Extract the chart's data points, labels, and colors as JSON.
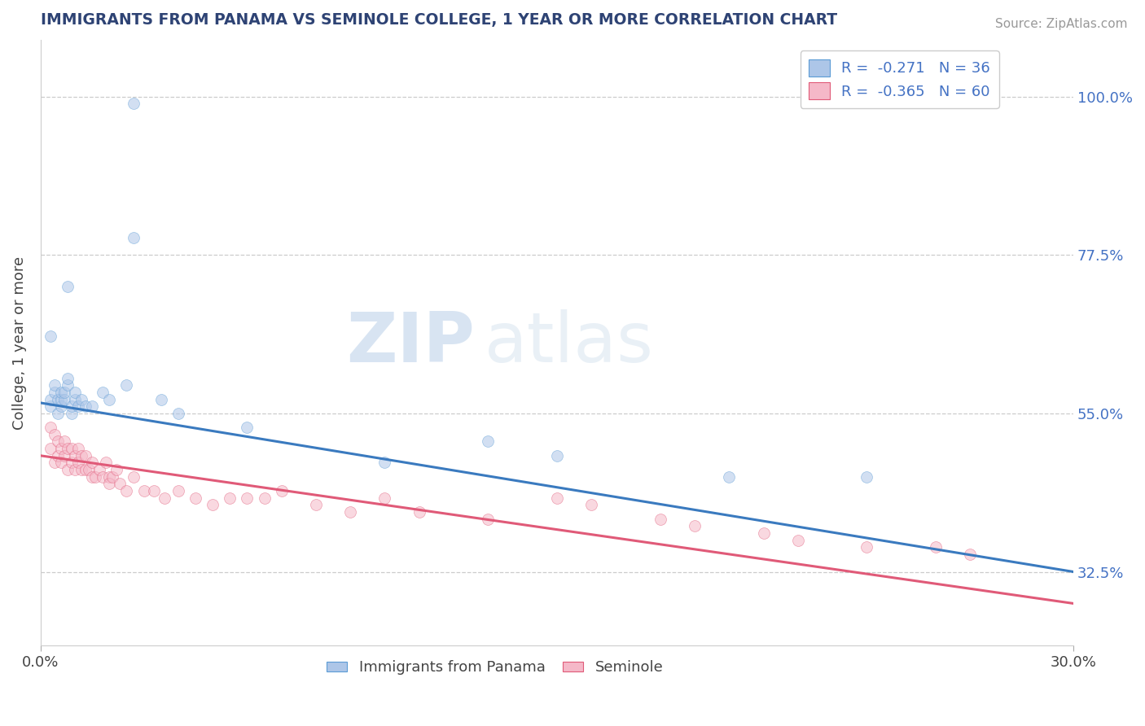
{
  "title": "IMMIGRANTS FROM PANAMA VS SEMINOLE COLLEGE, 1 YEAR OR MORE CORRELATION CHART",
  "source_text": "Source: ZipAtlas.com",
  "ylabel": "College, 1 year or more",
  "x_min": 0.0,
  "x_max": 0.3,
  "y_min": 0.22,
  "y_max": 1.08,
  "y_ticks": [
    0.325,
    0.55,
    0.775,
    1.0
  ],
  "y_tick_labels": [
    "32.5%",
    "55.0%",
    "77.5%",
    "100.0%"
  ],
  "legend_upper": [
    {
      "label": "R =  -0.271   N = 36",
      "face": "#adc6e8",
      "edge": "#5b9bd5"
    },
    {
      "label": "R =  -0.365   N = 60",
      "face": "#f5b8c8",
      "edge": "#e05a78"
    }
  ],
  "legend_lower": [
    {
      "label": "Immigrants from Panama",
      "face": "#adc6e8",
      "edge": "#5b9bd5"
    },
    {
      "label": "Seminole",
      "face": "#f5b8c8",
      "edge": "#e05a78"
    }
  ],
  "blue_x": [
    0.003,
    0.003,
    0.004,
    0.004,
    0.005,
    0.005,
    0.006,
    0.006,
    0.006,
    0.007,
    0.007,
    0.008,
    0.008,
    0.009,
    0.009,
    0.01,
    0.01,
    0.011,
    0.012,
    0.013,
    0.015,
    0.018,
    0.02,
    0.025,
    0.027,
    0.035,
    0.04,
    0.06,
    0.1,
    0.13,
    0.15,
    0.2,
    0.24,
    0.027,
    0.008,
    0.003
  ],
  "blue_y": [
    0.56,
    0.57,
    0.58,
    0.59,
    0.55,
    0.57,
    0.56,
    0.57,
    0.58,
    0.57,
    0.58,
    0.59,
    0.6,
    0.55,
    0.56,
    0.57,
    0.58,
    0.56,
    0.57,
    0.56,
    0.56,
    0.58,
    0.57,
    0.59,
    0.99,
    0.57,
    0.55,
    0.53,
    0.48,
    0.51,
    0.49,
    0.46,
    0.46,
    0.8,
    0.73,
    0.66
  ],
  "pink_x": [
    0.003,
    0.003,
    0.004,
    0.004,
    0.005,
    0.005,
    0.006,
    0.006,
    0.007,
    0.007,
    0.008,
    0.008,
    0.009,
    0.009,
    0.01,
    0.01,
    0.011,
    0.011,
    0.012,
    0.012,
    0.013,
    0.013,
    0.014,
    0.015,
    0.015,
    0.016,
    0.017,
    0.018,
    0.019,
    0.02,
    0.02,
    0.021,
    0.022,
    0.023,
    0.025,
    0.027,
    0.03,
    0.033,
    0.036,
    0.04,
    0.045,
    0.05,
    0.055,
    0.06,
    0.065,
    0.07,
    0.08,
    0.09,
    0.1,
    0.11,
    0.13,
    0.15,
    0.16,
    0.18,
    0.19,
    0.21,
    0.22,
    0.24,
    0.26,
    0.27
  ],
  "pink_y": [
    0.53,
    0.5,
    0.52,
    0.48,
    0.49,
    0.51,
    0.48,
    0.5,
    0.49,
    0.51,
    0.47,
    0.5,
    0.48,
    0.5,
    0.47,
    0.49,
    0.48,
    0.5,
    0.47,
    0.49,
    0.47,
    0.49,
    0.47,
    0.46,
    0.48,
    0.46,
    0.47,
    0.46,
    0.48,
    0.46,
    0.45,
    0.46,
    0.47,
    0.45,
    0.44,
    0.46,
    0.44,
    0.44,
    0.43,
    0.44,
    0.43,
    0.42,
    0.43,
    0.43,
    0.43,
    0.44,
    0.42,
    0.41,
    0.43,
    0.41,
    0.4,
    0.43,
    0.42,
    0.4,
    0.39,
    0.38,
    0.37,
    0.36,
    0.36,
    0.35
  ],
  "blue_face": "#adc6e8",
  "blue_edge": "#5b9bd5",
  "pink_face": "#f5b8c8",
  "pink_edge": "#e05a78",
  "blue_trend_color": "#3a7abf",
  "pink_trend_color": "#e05a78",
  "blue_trend_y0": 0.565,
  "blue_trend_y1": 0.325,
  "pink_trend_y0": 0.49,
  "pink_trend_y1": 0.28,
  "watermark_zip": "ZIP",
  "watermark_atlas": "atlas",
  "bg_color": "#ffffff",
  "grid_color": "#cccccc",
  "title_color": "#2e4374",
  "source_color": "#999999",
  "tick_label_color": "#4472c4",
  "marker_size": 100,
  "marker_alpha": 0.55
}
